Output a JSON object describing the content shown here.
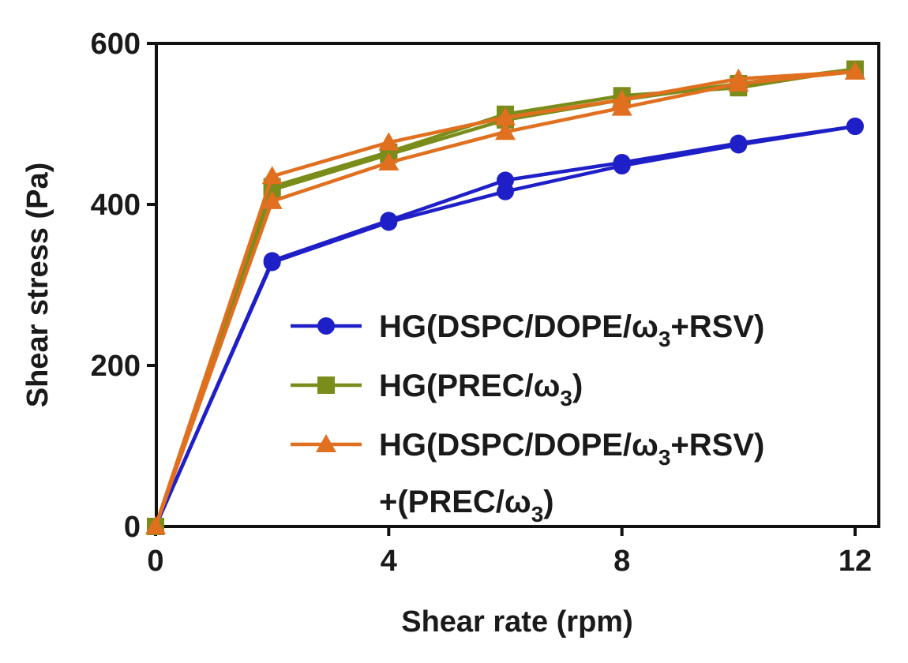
{
  "chart_data": {
    "type": "line",
    "title": "",
    "xlabel": "Shear rate (rpm)",
    "ylabel": "Shear stress (Pa)",
    "xlim": [
      0,
      12
    ],
    "ylim": [
      0,
      600
    ],
    "xticks": [
      0,
      4,
      8,
      12
    ],
    "yticks": [
      0,
      200,
      400,
      600
    ],
    "grid": false,
    "legend_position": "lower-right",
    "series": [
      {
        "name": "HG(DSPC/DOPE/ω3+RSV)",
        "marker": "circle",
        "color": "#1f1fc8",
        "legend": {
          "parts": [
            "HG(DSPC/DOPE/ω",
            "3",
            "+RSV)"
          ]
        },
        "up": {
          "x": [
            0,
            2,
            4,
            6,
            8,
            10,
            12
          ],
          "y": [
            0,
            330,
            380,
            430,
            452,
            476,
            497
          ]
        },
        "down": {
          "x": [
            12,
            10,
            8,
            6,
            4,
            2,
            0
          ],
          "y": [
            497,
            474,
            448,
            416,
            378,
            328,
            0
          ]
        }
      },
      {
        "name": "HG(PREC/ω3)",
        "marker": "square",
        "color": "#7a8c1a",
        "legend": {
          "parts": [
            "HG(PREC/ω",
            "3",
            ")"
          ]
        },
        "up": {
          "x": [
            0,
            2,
            4,
            6,
            8,
            10,
            12
          ],
          "y": [
            0,
            422,
            465,
            512,
            535,
            545,
            568
          ]
        },
        "down": {
          "x": [
            12,
            10,
            8,
            6,
            4,
            2,
            0
          ],
          "y": [
            568,
            550,
            530,
            505,
            462,
            418,
            0
          ]
        }
      },
      {
        "name": "HG(DSPC/DOPE/ω3+RSV)+(PREC/ω3)",
        "marker": "triangle",
        "color": "#e07020",
        "legend": {
          "parts": [
            "HG(DSPC/DOPE/ω",
            "3",
            "+RSV)"
          ],
          "line2": [
            "+(PREC/ω",
            "3",
            ")"
          ]
        },
        "up": {
          "x": [
            0,
            2,
            4,
            6,
            8,
            10,
            12
          ],
          "y": [
            0,
            435,
            477,
            508,
            530,
            556,
            565
          ]
        },
        "down": {
          "x": [
            12,
            10,
            8,
            6,
            4,
            2,
            0
          ],
          "y": [
            565,
            550,
            520,
            490,
            452,
            404,
            0
          ]
        }
      }
    ]
  }
}
